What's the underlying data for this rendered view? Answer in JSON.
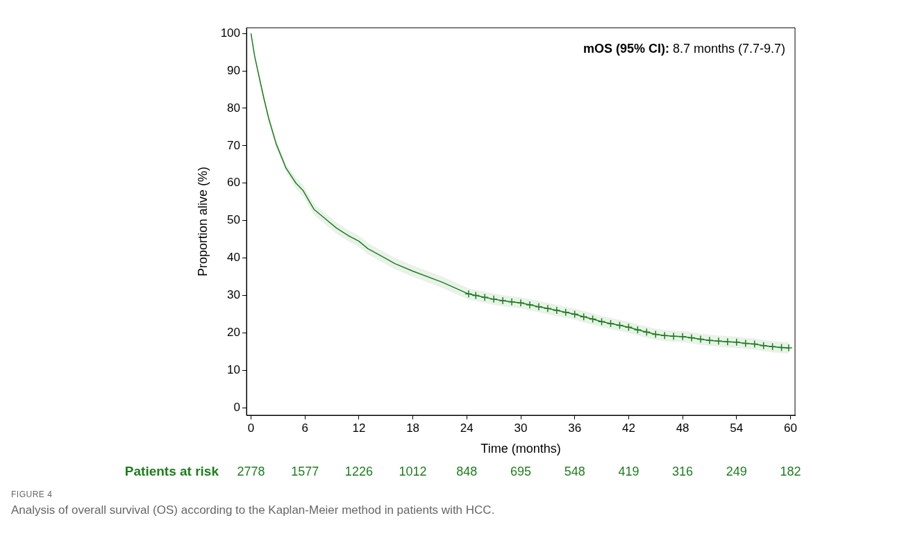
{
  "chart_data": {
    "type": "line",
    "title": "FIGURE 4",
    "subtitle": "Analysis of overall survival (OS) according to the Kaplan-Meier method in patients with HCC.",
    "xlabel": "Time (months)",
    "ylabel": "Proportion alive (%)",
    "xlim": [
      -0.5,
      60.5
    ],
    "xticks": [
      0,
      6,
      12,
      18,
      24,
      30,
      36,
      42,
      48,
      54,
      60
    ],
    "ylim": [
      -2,
      101.5
    ],
    "yticks": [
      0,
      10,
      20,
      30,
      40,
      50,
      60,
      70,
      80,
      90,
      100
    ],
    "grid": false,
    "legend": false,
    "line_style": "solid",
    "series": [
      {
        "color": "#1e7d1e",
        "marker": "none",
        "x": [
          0,
          0.4,
          0.85,
          1.4,
          2,
          2.8,
          3.9,
          5,
          5.8,
          7,
          8,
          9.5,
          10.8,
          12,
          13,
          14.9,
          16,
          18,
          21.3,
          24.2,
          25,
          26,
          27,
          28,
          29,
          30,
          31,
          32,
          33,
          34,
          35,
          36,
          37,
          38,
          39,
          40,
          41,
          42,
          43,
          44,
          45,
          46,
          47,
          48,
          49,
          50,
          51,
          52,
          53,
          54,
          55,
          56,
          57,
          58,
          59,
          59.8
        ],
        "values": [
          100,
          94,
          89,
          83,
          77,
          70.5,
          64,
          60,
          58,
          53,
          51,
          48,
          46,
          44.5,
          42.5,
          40,
          38.5,
          36.5,
          33.5,
          30.4,
          30,
          29.5,
          29,
          28.6,
          28.3,
          28,
          27.5,
          27,
          26.5,
          26,
          25.5,
          25,
          24.3,
          23.7,
          23,
          22.5,
          22,
          21.5,
          20.8,
          20.2,
          19.6,
          19.3,
          19.1,
          19,
          18.7,
          18.3,
          18,
          17.8,
          17.6,
          17.5,
          17.2,
          17,
          16.6,
          16.3,
          16.1,
          16
        ],
        "lower": [
          100,
          93.5,
          88,
          82,
          76,
          69.5,
          63,
          58.5,
          56.5,
          51.5,
          49.5,
          46.5,
          44.5,
          43,
          41,
          38.5,
          37,
          35,
          32,
          28.9,
          28.5,
          28,
          27.5,
          27.1,
          26.8,
          26.5,
          26,
          25.5,
          25,
          24.5,
          24,
          23.5,
          22.8,
          22.2,
          21.5,
          21,
          20.5,
          20,
          19.3,
          18.7,
          18.1,
          17.8,
          17.6,
          17.5,
          17.2,
          16.8,
          16.5,
          16.3,
          16.1,
          16,
          15.7,
          15.5,
          15.1,
          14.8,
          14.6,
          14.5
        ],
        "upper": [
          100,
          94.5,
          90,
          84,
          78,
          71.5,
          65,
          61.5,
          59.5,
          54.5,
          52.5,
          49.5,
          47.5,
          46,
          44,
          41.5,
          40,
          38,
          35,
          31.9,
          31.5,
          31,
          30.5,
          30.1,
          29.8,
          29.5,
          29,
          28.5,
          28,
          27.5,
          27,
          26.5,
          25.8,
          25.2,
          24.5,
          24,
          23.5,
          23,
          22.3,
          21.7,
          21.1,
          20.8,
          20.6,
          20.5,
          20.2,
          19.8,
          19.5,
          19.3,
          19.1,
          19,
          18.7,
          18.5,
          18.1,
          17.8,
          17.6,
          17.5
        ]
      },
      {
        "type": "scatter",
        "color": "#1e7d1e",
        "marker": "cross",
        "x": [
          24.2,
          25,
          26,
          27,
          28,
          29,
          30,
          31,
          32,
          33,
          34,
          35,
          36,
          37,
          38,
          39,
          40,
          41,
          42,
          43,
          44,
          45,
          46,
          47,
          48,
          49,
          50,
          51,
          52,
          53,
          54,
          55,
          56,
          57,
          58,
          59,
          59.8
        ],
        "values": [
          30.4,
          30,
          29.5,
          29,
          28.6,
          28.3,
          28,
          27.5,
          27,
          26.5,
          26,
          25.5,
          25,
          24.3,
          23.7,
          23,
          22.5,
          22,
          21.5,
          20.8,
          20.2,
          19.6,
          19.3,
          19.1,
          19,
          18.7,
          18.3,
          18,
          17.8,
          17.6,
          17.5,
          17.2,
          17,
          16.6,
          16.3,
          16.1,
          16
        ]
      }
    ],
    "annotations": [
      "mOS (95% CI): 8.7 months (7.7-9.7)",
      "Patients at risk",
      "2778",
      "1577",
      "1226",
      "1012",
      "848",
      "695",
      "548",
      "419",
      "316",
      "249",
      "182"
    ]
  }
}
